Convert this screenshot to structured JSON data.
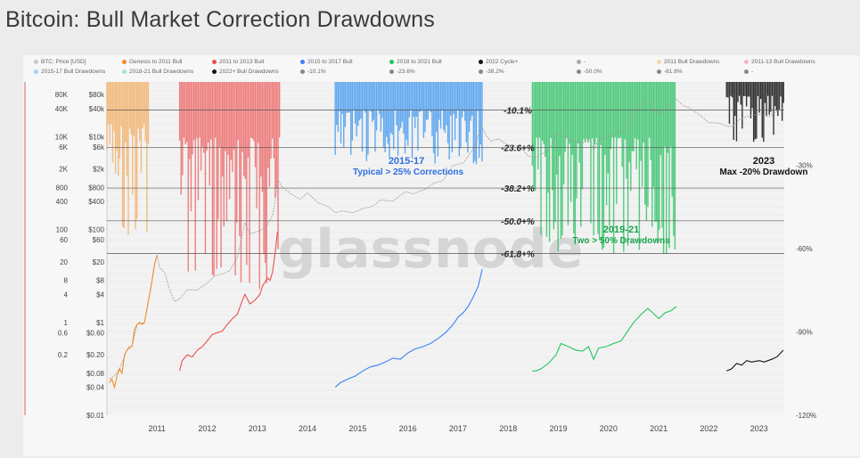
{
  "page": {
    "title": "Bitcoin: Bull Market Correction Drawdowns"
  },
  "legend": [
    {
      "label": "BTC: Price [USD]",
      "color": "#c8c8c8"
    },
    {
      "label": "Genesis to 2011 Bull",
      "color": "#f28c28"
    },
    {
      "label": "2011 to 2013 Bull",
      "color": "#e8504f"
    },
    {
      "label": "2015 to 2017 Bull",
      "color": "#3b82f6"
    },
    {
      "label": "2018 to 2021 Bull",
      "color": "#22c55e"
    },
    {
      "label": "2022 Cycle+",
      "color": "#111111"
    },
    {
      "label": "-",
      "color": "#aaaaaa"
    },
    {
      "label": "2011 Bull Drawdowns",
      "color": "#f6d9a8"
    },
    {
      "label": "2011-13 Bull Drawdowns",
      "color": "#f6b6c0"
    },
    {
      "label": "2015-17 Bull Drawdowns",
      "color": "#a8cff6"
    },
    {
      "label": "2018-21 Bull Drawdowns",
      "color": "#a8e6bd"
    },
    {
      "label": "2022+ Bull Drawdowns",
      "color": "#111111"
    },
    {
      "label": "-10.1%",
      "color": "#888888"
    },
    {
      "label": "-23.6%",
      "color": "#888888"
    },
    {
      "label": "-38.2%",
      "color": "#888888"
    },
    {
      "label": "-50.0%",
      "color": "#888888"
    },
    {
      "label": "-61.8%",
      "color": "#888888"
    },
    {
      "label": "-",
      "color": "#888888"
    }
  ],
  "colors": {
    "genesis": "#f28c28",
    "bull_2011_13": "#e8504f",
    "bull_2015_17": "#3b82f6",
    "bull_2018_21": "#22c55e",
    "cycle_2022": "#111111",
    "btc_price": "#9a9a9a",
    "drawdown_2011": "#f2b26b",
    "drawdown_2011_13": "#ee6b6b",
    "drawdown_2015_17": "#4a9df0",
    "drawdown_2018_21": "#35c46a",
    "drawdown_2022": "#111111"
  },
  "chart_data": {
    "type": "line",
    "title": "Bitcoin: Bull Market Correction Drawdowns",
    "x_axis": {
      "ticks": [
        "2011",
        "2012",
        "2013",
        "2014",
        "2015",
        "2016",
        "2017",
        "2018",
        "2019",
        "2020",
        "2021",
        "2022",
        "2023"
      ],
      "range": [
        2010.5,
        2024.0
      ]
    },
    "y_axis_inner": {
      "scale": "log",
      "ticks": [
        "$80k",
        "$40k",
        "$10k",
        "$6k",
        "$2k",
        "$800",
        "$400",
        "$100",
        "$60",
        "$20",
        "$8",
        "$4",
        "$1",
        "$0.60",
        "$0.20",
        "$0.08",
        "$0.04",
        "$0.01"
      ],
      "values": [
        80000,
        40000,
        10000,
        6000,
        2000,
        800,
        400,
        100,
        60,
        20,
        8,
        4,
        1,
        0.6,
        0.2,
        0.08,
        0.04,
        0.01
      ]
    },
    "y_axis_outer": {
      "scale": "log",
      "ticks": [
        "80K",
        "40K",
        "10K",
        "6K",
        "2K",
        "800",
        "400",
        "100",
        "60",
        "20",
        "8",
        "4",
        "1",
        "0.6",
        "0.2"
      ],
      "values": [
        80000,
        40000,
        10000,
        6000,
        2000,
        800,
        400,
        100,
        60,
        20,
        8,
        4,
        1,
        0.6,
        0.2
      ]
    },
    "y_axis_right": {
      "ticks": [
        "-30%",
        "-60%",
        "-90%",
        "-120%"
      ],
      "values": [
        -30,
        -60,
        -90,
        -120
      ]
    },
    "drawdown_levels": [
      {
        "label": "-10.1%",
        "value": -10.1
      },
      {
        "label": "-23.6+%",
        "value": -23.6
      },
      {
        "label": "-38.2+%",
        "value": -38.2
      },
      {
        "label": "-50.0+%",
        "value": -50.0
      },
      {
        "label": "-61.8+%",
        "value": -61.8
      }
    ],
    "annotations": [
      {
        "id": "a2015",
        "line1": "2015-17",
        "line2": "Typical > 25% Corrections",
        "color": "#2f6fe0"
      },
      {
        "id": "a2019",
        "line1": "2019-21",
        "line2": "Two > 50% Drawdowns",
        "color": "#16a34a"
      },
      {
        "id": "a2023",
        "line1": "2023",
        "line2": "Max -20% Drawdown",
        "color": "#111111"
      }
    ],
    "watermark": "glassnode",
    "series": [
      {
        "name": "BTC: Price [USD]",
        "key": "btc_price",
        "points": [
          [
            2010.55,
            0.06
          ],
          [
            2010.65,
            0.07
          ],
          [
            2010.75,
            0.1
          ],
          [
            2010.9,
            0.25
          ],
          [
            2011.0,
            0.3
          ],
          [
            2011.1,
            0.9
          ],
          [
            2011.25,
            1.0
          ],
          [
            2011.35,
            4
          ],
          [
            2011.45,
            18
          ],
          [
            2011.5,
            28
          ],
          [
            2011.55,
            15
          ],
          [
            2011.65,
            12
          ],
          [
            2011.75,
            5
          ],
          [
            2011.85,
            2.8
          ],
          [
            2011.95,
            3.2
          ],
          [
            2012.1,
            5
          ],
          [
            2012.3,
            5
          ],
          [
            2012.5,
            7
          ],
          [
            2012.65,
            10
          ],
          [
            2012.8,
            11
          ],
          [
            2012.95,
            13
          ],
          [
            2013.1,
            25
          ],
          [
            2013.25,
            140
          ],
          [
            2013.35,
            80
          ],
          [
            2013.5,
            90
          ],
          [
            2013.6,
            100
          ],
          [
            2013.7,
            130
          ],
          [
            2013.8,
            200
          ],
          [
            2013.92,
            1100
          ],
          [
            2014.0,
            800
          ],
          [
            2014.15,
            600
          ],
          [
            2014.35,
            450
          ],
          [
            2014.5,
            620
          ],
          [
            2014.7,
            380
          ],
          [
            2014.9,
            320
          ],
          [
            2015.05,
            230
          ],
          [
            2015.2,
            250
          ],
          [
            2015.4,
            230
          ],
          [
            2015.6,
            280
          ],
          [
            2015.8,
            320
          ],
          [
            2015.95,
            430
          ],
          [
            2016.2,
            410
          ],
          [
            2016.45,
            660
          ],
          [
            2016.6,
            580
          ],
          [
            2016.85,
            740
          ],
          [
            2017.0,
            980
          ],
          [
            2017.2,
            1150
          ],
          [
            2017.4,
            2400
          ],
          [
            2017.6,
            2700
          ],
          [
            2017.75,
            4500
          ],
          [
            2017.85,
            6500
          ],
          [
            2017.96,
            17000
          ],
          [
            2018.05,
            11000
          ],
          [
            2018.15,
            8000
          ],
          [
            2018.3,
            9000
          ],
          [
            2018.5,
            6500
          ],
          [
            2018.7,
            6400
          ],
          [
            2018.9,
            3800
          ],
          [
            2019.05,
            3600
          ],
          [
            2019.3,
            5000
          ],
          [
            2019.48,
            12000
          ],
          [
            2019.6,
            10000
          ],
          [
            2019.8,
            8000
          ],
          [
            2019.98,
            7200
          ],
          [
            2020.1,
            9500
          ],
          [
            2020.2,
            5000
          ],
          [
            2020.3,
            8600
          ],
          [
            2020.45,
            9300
          ],
          [
            2020.6,
            11500
          ],
          [
            2020.8,
            13500
          ],
          [
            2020.98,
            29000
          ],
          [
            2021.1,
            47000
          ],
          [
            2021.28,
            58000
          ],
          [
            2021.4,
            36000
          ],
          [
            2021.55,
            32000
          ],
          [
            2021.7,
            47000
          ],
          [
            2021.85,
            64000
          ],
          [
            2021.98,
            47000
          ],
          [
            2022.1,
            42000
          ],
          [
            2022.3,
            30000
          ],
          [
            2022.5,
            20000
          ],
          [
            2022.7,
            19500
          ],
          [
            2022.88,
            16500
          ],
          [
            2022.98,
            16800
          ],
          [
            2023.1,
            23000
          ],
          [
            2023.3,
            28000
          ],
          [
            2023.5,
            30000
          ],
          [
            2023.7,
            26500
          ],
          [
            2023.85,
            35000
          ],
          [
            2023.98,
            42000
          ]
        ]
      },
      {
        "name": "Genesis to 2011 Bull",
        "key": "genesis",
        "points": [
          [
            2010.55,
            0.05
          ],
          [
            2010.6,
            0.06
          ],
          [
            2010.65,
            0.04
          ],
          [
            2010.7,
            0.07
          ],
          [
            2010.75,
            0.1
          ],
          [
            2010.8,
            0.08
          ],
          [
            2010.85,
            0.2
          ],
          [
            2010.9,
            0.25
          ],
          [
            2010.95,
            0.3
          ],
          [
            2011.0,
            0.3
          ],
          [
            2011.05,
            0.7
          ],
          [
            2011.1,
            0.9
          ],
          [
            2011.15,
            1.0
          ],
          [
            2011.2,
            0.9
          ],
          [
            2011.25,
            1.0
          ],
          [
            2011.3,
            2.0
          ],
          [
            2011.35,
            4
          ],
          [
            2011.4,
            8
          ],
          [
            2011.45,
            18
          ],
          [
            2011.5,
            28
          ]
        ]
      },
      {
        "name": "2011 to 2013 Bull",
        "key": "bull_2011_13",
        "points": [
          [
            2011.95,
            0.09
          ],
          [
            2012.0,
            0.15
          ],
          [
            2012.1,
            0.2
          ],
          [
            2012.2,
            0.18
          ],
          [
            2012.3,
            0.25
          ],
          [
            2012.4,
            0.3
          ],
          [
            2012.5,
            0.4
          ],
          [
            2012.6,
            0.55
          ],
          [
            2012.7,
            0.6
          ],
          [
            2012.8,
            0.65
          ],
          [
            2012.9,
            0.9
          ],
          [
            2013.0,
            1.2
          ],
          [
            2013.1,
            1.5
          ],
          [
            2013.2,
            3
          ],
          [
            2013.25,
            4
          ],
          [
            2013.35,
            2.5
          ],
          [
            2013.45,
            3
          ],
          [
            2013.55,
            4
          ],
          [
            2013.6,
            6
          ],
          [
            2013.7,
            9
          ],
          [
            2013.75,
            8
          ],
          [
            2013.8,
            12
          ],
          [
            2013.85,
            30
          ],
          [
            2013.9,
            90
          ]
        ]
      },
      {
        "name": "2015 to 2017 Bull",
        "key": "bull_2015_17",
        "points": [
          [
            2015.05,
            0.04
          ],
          [
            2015.15,
            0.05
          ],
          [
            2015.3,
            0.06
          ],
          [
            2015.45,
            0.07
          ],
          [
            2015.6,
            0.09
          ],
          [
            2015.75,
            0.11
          ],
          [
            2015.9,
            0.12
          ],
          [
            2016.05,
            0.14
          ],
          [
            2016.2,
            0.17
          ],
          [
            2016.35,
            0.16
          ],
          [
            2016.5,
            0.22
          ],
          [
            2016.65,
            0.27
          ],
          [
            2016.8,
            0.3
          ],
          [
            2016.95,
            0.35
          ],
          [
            2017.1,
            0.45
          ],
          [
            2017.25,
            0.6
          ],
          [
            2017.4,
            0.9
          ],
          [
            2017.5,
            1.3
          ],
          [
            2017.6,
            1.6
          ],
          [
            2017.7,
            2.2
          ],
          [
            2017.8,
            3.5
          ],
          [
            2017.9,
            6
          ],
          [
            2017.98,
            14
          ]
        ]
      },
      {
        "name": "2018 to 2021 Bull",
        "key": "bull_2018_21",
        "points": [
          [
            2018.98,
            0.09
          ],
          [
            2019.05,
            0.09
          ],
          [
            2019.15,
            0.1
          ],
          [
            2019.3,
            0.13
          ],
          [
            2019.45,
            0.2
          ],
          [
            2019.55,
            0.35
          ],
          [
            2019.7,
            0.3
          ],
          [
            2019.85,
            0.25
          ],
          [
            2019.98,
            0.24
          ],
          [
            2020.1,
            0.3
          ],
          [
            2020.2,
            0.16
          ],
          [
            2020.3,
            0.28
          ],
          [
            2020.45,
            0.3
          ],
          [
            2020.6,
            0.35
          ],
          [
            2020.75,
            0.4
          ],
          [
            2020.9,
            0.7
          ],
          [
            2021.0,
            1.0
          ],
          [
            2021.15,
            1.5
          ],
          [
            2021.28,
            2.0
          ],
          [
            2021.38,
            1.6
          ],
          [
            2021.5,
            1.2
          ],
          [
            2021.62,
            1.6
          ],
          [
            2021.75,
            1.8
          ],
          [
            2021.85,
            2.2
          ]
        ]
      },
      {
        "name": "2022 Cycle+",
        "key": "cycle_2022",
        "points": [
          [
            2022.85,
            0.09
          ],
          [
            2022.95,
            0.1
          ],
          [
            2023.05,
            0.13
          ],
          [
            2023.15,
            0.12
          ],
          [
            2023.25,
            0.15
          ],
          [
            2023.35,
            0.14
          ],
          [
            2023.5,
            0.15
          ],
          [
            2023.6,
            0.14
          ],
          [
            2023.75,
            0.16
          ],
          [
            2023.85,
            0.18
          ],
          [
            2023.98,
            0.25
          ]
        ]
      }
    ],
    "drawdown_regions": [
      {
        "name": "2011 Bull Drawdowns",
        "key": "drawdown_2011",
        "x_range": [
          2010.5,
          2011.35
        ],
        "depth_min": -15,
        "depth_max": -60
      },
      {
        "name": "2011-13 Bull Drawdowns",
        "key": "drawdown_2011_13",
        "x_range": [
          2011.95,
          2013.95
        ],
        "depth_min": -20,
        "depth_max": -75
      },
      {
        "name": "2015-17 Bull Drawdowns",
        "key": "drawdown_2015_17",
        "x_range": [
          2015.05,
          2018.0
        ],
        "depth_min": -10,
        "depth_max": -30
      },
      {
        "name": "2018-21 Bull Drawdowns",
        "key": "drawdown_2018_21",
        "x_range": [
          2018.98,
          2021.85
        ],
        "depth_min": -20,
        "depth_max": -62
      },
      {
        "name": "2022+ Bull Drawdowns",
        "key": "drawdown_2022",
        "x_range": [
          2022.85,
          2024.0
        ],
        "depth_min": -5,
        "depth_max": -22
      }
    ]
  }
}
